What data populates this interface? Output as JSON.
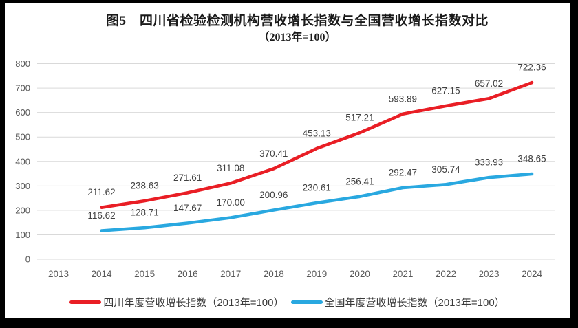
{
  "title": {
    "line1": "图5　四川省检验检测机构营收增长指数与全国营收增长指数对比",
    "line2": "（2013年=100）"
  },
  "chart_data": {
    "type": "line",
    "categories": [
      "2013",
      "2014",
      "2015",
      "2016",
      "2017",
      "2018",
      "2019",
      "2020",
      "2021",
      "2022",
      "2023",
      "2024"
    ],
    "series": [
      {
        "name": "四川年度营收增长指数（2013年=100）",
        "color": "#e91e25",
        "values": [
          null,
          211.62,
          238.63,
          271.61,
          311.08,
          370.41,
          453.13,
          517.21,
          593.89,
          627.15,
          657.02,
          722.36
        ]
      },
      {
        "name": "全国年度营收增长指数（2013年=100）",
        "color": "#29a8e0",
        "values": [
          null,
          116.62,
          128.71,
          147.67,
          170.0,
          200.96,
          230.61,
          256.41,
          292.47,
          305.74,
          333.93,
          348.65
        ]
      }
    ],
    "ylim": [
      0,
      800
    ],
    "ytick_step": 100,
    "yticks": [
      0,
      100,
      200,
      300,
      400,
      500,
      600,
      700,
      800
    ],
    "grid": true,
    "gridline_color": "#d9d9d9",
    "legend_position": "bottom",
    "data_labels": true,
    "data_label_decimals": 2
  },
  "colors": {
    "frame": "#000000",
    "background": "#ffffff",
    "tick_text": "#595959",
    "data_label_text": "#404040",
    "title_text": "#1a1a1a"
  }
}
